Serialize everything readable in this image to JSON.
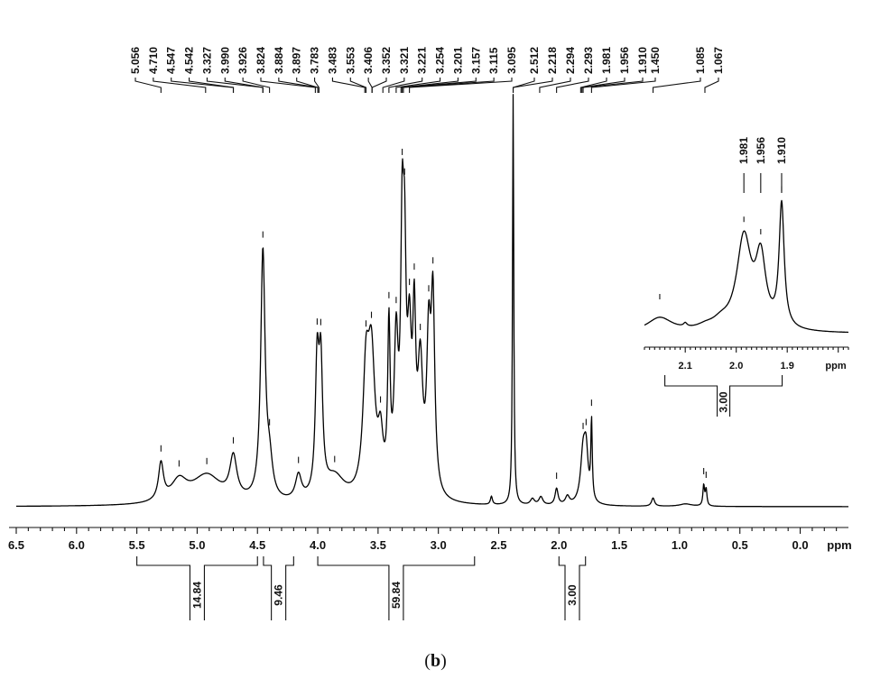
{
  "chart_data": {
    "type": "line",
    "subtype": "1H NMR spectrum",
    "xlabel": "ppm",
    "xlim": [
      6.5,
      -0.4
    ],
    "x_reversed": true,
    "x_ticks": [
      "6.5",
      "6.0",
      "5.5",
      "5.0",
      "4.5",
      "4.0",
      "3.5",
      "3.0",
      "2.5",
      "2.0",
      "1.5",
      "1.0",
      "0.5",
      "0.0"
    ],
    "peak_labels": [
      "5.056",
      "4.710",
      "4.547",
      "4.542",
      "3.327",
      "3.990",
      "3.926",
      "3.824",
      "3.884",
      "3.897",
      "3.783",
      "3.483",
      "3.553",
      "3.406",
      "3.352",
      "3.321",
      "3.221",
      "3.254",
      "3.201",
      "3.157",
      "3.115",
      "3.095",
      "2.512",
      "2.218",
      "2.294",
      "2.293",
      "1.981",
      "1.956",
      "1.910",
      "1.450",
      "1.085",
      "1.067"
    ],
    "peaks": [
      {
        "x": 5.3,
        "height": 0.09,
        "width": 0.025
      },
      {
        "x": 5.15,
        "height": 0.05,
        "width": 0.08
      },
      {
        "x": 4.92,
        "height": 0.07,
        "width": 0.15
      },
      {
        "x": 4.7,
        "height": 0.1,
        "width": 0.035
      },
      {
        "x": 4.455,
        "height": 0.6,
        "width": 0.022
      },
      {
        "x": 4.4,
        "height": 0.08,
        "width": 0.03
      },
      {
        "x": 4.16,
        "height": 0.06,
        "width": 0.03
      },
      {
        "x": 4.005,
        "height": 0.31,
        "width": 0.018
      },
      {
        "x": 3.975,
        "height": 0.3,
        "width": 0.018
      },
      {
        "x": 3.86,
        "height": 0.06,
        "width": 0.1
      },
      {
        "x": 3.6,
        "height": 0.27,
        "width": 0.03
      },
      {
        "x": 3.555,
        "height": 0.32,
        "width": 0.035
      },
      {
        "x": 3.48,
        "height": 0.12,
        "width": 0.025
      },
      {
        "x": 3.41,
        "height": 0.38,
        "width": 0.012
      },
      {
        "x": 3.35,
        "height": 0.35,
        "width": 0.02
      },
      {
        "x": 3.3,
        "height": 0.55,
        "width": 0.015
      },
      {
        "x": 3.28,
        "height": 0.45,
        "width": 0.015
      },
      {
        "x": 3.24,
        "height": 0.33,
        "width": 0.02
      },
      {
        "x": 3.2,
        "height": 0.37,
        "width": 0.015
      },
      {
        "x": 3.15,
        "height": 0.3,
        "width": 0.025
      },
      {
        "x": 3.08,
        "height": 0.35,
        "width": 0.02
      },
      {
        "x": 3.045,
        "height": 0.45,
        "width": 0.018
      },
      {
        "x": 2.56,
        "height": 0.02,
        "width": 0.01
      },
      {
        "x": 2.38,
        "height": 1.0,
        "width": 0.006
      },
      {
        "x": 2.22,
        "height": 0.015,
        "width": 0.02
      },
      {
        "x": 2.15,
        "height": 0.02,
        "width": 0.02
      },
      {
        "x": 2.02,
        "height": 0.04,
        "width": 0.015
      },
      {
        "x": 1.93,
        "height": 0.02,
        "width": 0.02
      },
      {
        "x": 1.8,
        "height": 0.12,
        "width": 0.025
      },
      {
        "x": 1.775,
        "height": 0.11,
        "width": 0.02
      },
      {
        "x": 1.73,
        "height": 0.19,
        "width": 0.007
      },
      {
        "x": 1.22,
        "height": 0.02,
        "width": 0.015
      },
      {
        "x": 0.95,
        "height": 0.006,
        "width": 0.06
      },
      {
        "x": 0.8,
        "height": 0.05,
        "width": 0.008
      },
      {
        "x": 0.78,
        "height": 0.04,
        "width": 0.008
      }
    ],
    "integrals": [
      {
        "label": "14.84",
        "from": 5.5,
        "to": 4.5
      },
      {
        "label": "9.46",
        "from": 4.45,
        "to": 4.2
      },
      {
        "label": "59.84",
        "from": 4.0,
        "to": 2.7
      },
      {
        "label": "3.00",
        "from": 2.0,
        "to": 1.78
      }
    ],
    "inset": {
      "xlabel": "ppm",
      "xlim": [
        2.18,
        1.78
      ],
      "x_ticks": [
        "2.1",
        "2.0",
        "1.9"
      ],
      "peak_labels": [
        "1.981",
        "1.956",
        "1.910"
      ],
      "integral_label": "3.00",
      "peaks": [
        {
          "x": 2.15,
          "height": 0.12,
          "width": 0.03
        },
        {
          "x": 2.1,
          "height": 0.03,
          "width": 0.004
        },
        {
          "x": 2.06,
          "height": 0.03,
          "width": 0.02
        },
        {
          "x": 2.03,
          "height": 0.06,
          "width": 0.02
        },
        {
          "x": 1.985,
          "height": 0.75,
          "width": 0.017
        },
        {
          "x": 1.952,
          "height": 0.55,
          "width": 0.012
        },
        {
          "x": 1.911,
          "height": 1.0,
          "width": 0.006
        }
      ]
    }
  },
  "caption": {
    "label": "b"
  }
}
